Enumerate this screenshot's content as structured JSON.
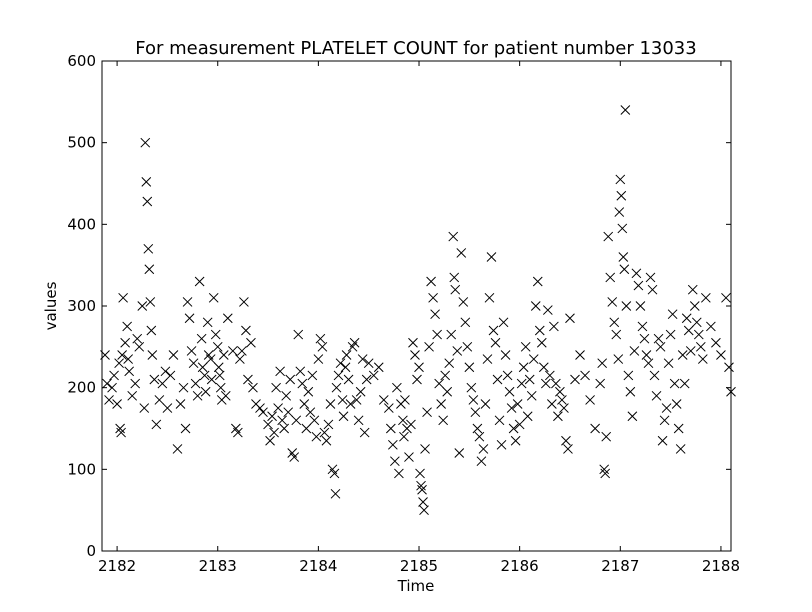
{
  "chart_data": {
    "type": "scatter",
    "title": "For measurement PLATELET COUNT for patient number 13033",
    "xlabel": "Time",
    "ylabel": "values",
    "xlim": [
      2181.85,
      2188.1
    ],
    "ylim": [
      0,
      600
    ],
    "xticks": [
      "2182",
      "2183",
      "2184",
      "2185",
      "2186",
      "2187",
      "2188"
    ],
    "yticks": [
      "0",
      "100",
      "200",
      "300",
      "400",
      "500",
      "600"
    ],
    "grid": false,
    "legend": "none",
    "marker": "x",
    "marker_color": "#000000",
    "series": [
      {
        "points": [
          [
            2181.88,
            240
          ],
          [
            2181.9,
            205
          ],
          [
            2181.92,
            185
          ],
          [
            2181.95,
            200
          ],
          [
            2181.97,
            215
          ],
          [
            2182.0,
            180
          ],
          [
            2182.02,
            230
          ],
          [
            2182.03,
            150
          ],
          [
            2182.04,
            145
          ],
          [
            2182.05,
            240
          ],
          [
            2182.06,
            310
          ],
          [
            2182.08,
            255
          ],
          [
            2182.1,
            275
          ],
          [
            2182.11,
            235
          ],
          [
            2182.12,
            220
          ],
          [
            2182.15,
            190
          ],
          [
            2182.18,
            205
          ],
          [
            2182.2,
            260
          ],
          [
            2182.22,
            250
          ],
          [
            2182.25,
            300
          ],
          [
            2182.27,
            175
          ],
          [
            2182.28,
            500
          ],
          [
            2182.29,
            452
          ],
          [
            2182.3,
            428
          ],
          [
            2182.31,
            370
          ],
          [
            2182.32,
            345
          ],
          [
            2182.33,
            305
          ],
          [
            2182.34,
            270
          ],
          [
            2182.35,
            240
          ],
          [
            2182.37,
            210
          ],
          [
            2182.39,
            155
          ],
          [
            2182.42,
            185
          ],
          [
            2182.45,
            205
          ],
          [
            2182.48,
            220
          ],
          [
            2182.5,
            175
          ],
          [
            2182.53,
            215
          ],
          [
            2182.56,
            240
          ],
          [
            2182.6,
            125
          ],
          [
            2182.63,
            180
          ],
          [
            2182.66,
            200
          ],
          [
            2182.68,
            150
          ],
          [
            2182.7,
            305
          ],
          [
            2182.72,
            285
          ],
          [
            2182.74,
            245
          ],
          [
            2182.76,
            230
          ],
          [
            2182.78,
            205
          ],
          [
            2182.8,
            190
          ],
          [
            2182.82,
            330
          ],
          [
            2182.84,
            260
          ],
          [
            2182.85,
            225
          ],
          [
            2182.87,
            215
          ],
          [
            2182.88,
            195
          ],
          [
            2182.9,
            280
          ],
          [
            2182.91,
            240
          ],
          [
            2182.93,
            235
          ],
          [
            2182.94,
            210
          ],
          [
            2182.96,
            310
          ],
          [
            2182.98,
            265
          ],
          [
            2183.0,
            250
          ],
          [
            2183.01,
            225
          ],
          [
            2183.02,
            215
          ],
          [
            2183.03,
            200
          ],
          [
            2183.04,
            185
          ],
          [
            2183.06,
            240
          ],
          [
            2183.08,
            190
          ],
          [
            2183.1,
            285
          ],
          [
            2183.15,
            245
          ],
          [
            2183.18,
            150
          ],
          [
            2183.2,
            145
          ],
          [
            2183.22,
            235
          ],
          [
            2183.24,
            245
          ],
          [
            2183.26,
            305
          ],
          [
            2183.28,
            270
          ],
          [
            2183.3,
            210
          ],
          [
            2183.33,
            255
          ],
          [
            2183.35,
            200
          ],
          [
            2183.38,
            180
          ],
          [
            2183.42,
            175
          ],
          [
            2183.45,
            170
          ],
          [
            2183.5,
            155
          ],
          [
            2183.52,
            135
          ],
          [
            2183.54,
            165
          ],
          [
            2183.56,
            145
          ],
          [
            2183.58,
            200
          ],
          [
            2183.6,
            175
          ],
          [
            2183.62,
            220
          ],
          [
            2183.64,
            160
          ],
          [
            2183.66,
            150
          ],
          [
            2183.68,
            190
          ],
          [
            2183.7,
            170
          ],
          [
            2183.72,
            210
          ],
          [
            2183.74,
            120
          ],
          [
            2183.76,
            115
          ],
          [
            2183.78,
            160
          ],
          [
            2183.8,
            265
          ],
          [
            2183.82,
            220
          ],
          [
            2183.84,
            205
          ],
          [
            2183.86,
            180
          ],
          [
            2183.88,
            150
          ],
          [
            2183.9,
            195
          ],
          [
            2183.92,
            170
          ],
          [
            2183.94,
            215
          ],
          [
            2183.96,
            160
          ],
          [
            2183.98,
            140
          ],
          [
            2184.0,
            235
          ],
          [
            2184.02,
            260
          ],
          [
            2184.04,
            250
          ],
          [
            2184.06,
            145
          ],
          [
            2184.08,
            135
          ],
          [
            2184.1,
            155
          ],
          [
            2184.12,
            180
          ],
          [
            2184.14,
            100
          ],
          [
            2184.16,
            95
          ],
          [
            2184.17,
            70
          ],
          [
            2184.18,
            200
          ],
          [
            2184.2,
            215
          ],
          [
            2184.22,
            230
          ],
          [
            2184.24,
            185
          ],
          [
            2184.25,
            165
          ],
          [
            2184.27,
            225
          ],
          [
            2184.28,
            240
          ],
          [
            2184.3,
            210
          ],
          [
            2184.32,
            180
          ],
          [
            2184.34,
            250
          ],
          [
            2184.36,
            255
          ],
          [
            2184.38,
            185
          ],
          [
            2184.4,
            160
          ],
          [
            2184.42,
            195
          ],
          [
            2184.44,
            235
          ],
          [
            2184.46,
            145
          ],
          [
            2184.48,
            210
          ],
          [
            2184.5,
            230
          ],
          [
            2184.55,
            215
          ],
          [
            2184.6,
            225
          ],
          [
            2184.65,
            185
          ],
          [
            2184.7,
            175
          ],
          [
            2184.72,
            150
          ],
          [
            2184.74,
            130
          ],
          [
            2184.76,
            110
          ],
          [
            2184.78,
            200
          ],
          [
            2184.8,
            95
          ],
          [
            2184.82,
            180
          ],
          [
            2184.84,
            160
          ],
          [
            2184.85,
            140
          ],
          [
            2184.86,
            185
          ],
          [
            2184.88,
            150
          ],
          [
            2184.9,
            115
          ],
          [
            2184.92,
            155
          ],
          [
            2184.94,
            255
          ],
          [
            2184.96,
            240
          ],
          [
            2184.98,
            210
          ],
          [
            2185.0,
            225
          ],
          [
            2185.01,
            95
          ],
          [
            2185.02,
            80
          ],
          [
            2185.03,
            75
          ],
          [
            2185.04,
            60
          ],
          [
            2185.05,
            50
          ],
          [
            2185.06,
            125
          ],
          [
            2185.08,
            170
          ],
          [
            2185.1,
            250
          ],
          [
            2185.12,
            330
          ],
          [
            2185.14,
            310
          ],
          [
            2185.16,
            290
          ],
          [
            2185.18,
            265
          ],
          [
            2185.2,
            205
          ],
          [
            2185.22,
            180
          ],
          [
            2185.24,
            160
          ],
          [
            2185.26,
            215
          ],
          [
            2185.28,
            195
          ],
          [
            2185.3,
            230
          ],
          [
            2185.32,
            265
          ],
          [
            2185.34,
            385
          ],
          [
            2185.35,
            335
          ],
          [
            2185.36,
            320
          ],
          [
            2185.38,
            245
          ],
          [
            2185.4,
            120
          ],
          [
            2185.42,
            365
          ],
          [
            2185.44,
            305
          ],
          [
            2185.46,
            280
          ],
          [
            2185.48,
            250
          ],
          [
            2185.5,
            225
          ],
          [
            2185.52,
            200
          ],
          [
            2185.54,
            185
          ],
          [
            2185.56,
            170
          ],
          [
            2185.58,
            150
          ],
          [
            2185.6,
            140
          ],
          [
            2185.62,
            110
          ],
          [
            2185.64,
            125
          ],
          [
            2185.66,
            180
          ],
          [
            2185.68,
            235
          ],
          [
            2185.7,
            310
          ],
          [
            2185.72,
            360
          ],
          [
            2185.74,
            270
          ],
          [
            2185.76,
            255
          ],
          [
            2185.78,
            210
          ],
          [
            2185.8,
            160
          ],
          [
            2185.82,
            130
          ],
          [
            2185.84,
            280
          ],
          [
            2185.86,
            240
          ],
          [
            2185.88,
            215
          ],
          [
            2185.9,
            195
          ],
          [
            2185.92,
            175
          ],
          [
            2185.94,
            150
          ],
          [
            2185.96,
            135
          ],
          [
            2185.98,
            180
          ],
          [
            2186.0,
            155
          ],
          [
            2186.02,
            205
          ],
          [
            2186.04,
            225
          ],
          [
            2186.06,
            250
          ],
          [
            2186.08,
            165
          ],
          [
            2186.1,
            210
          ],
          [
            2186.12,
            190
          ],
          [
            2186.14,
            235
          ],
          [
            2186.16,
            300
          ],
          [
            2186.18,
            330
          ],
          [
            2186.2,
            270
          ],
          [
            2186.22,
            255
          ],
          [
            2186.24,
            225
          ],
          [
            2186.26,
            205
          ],
          [
            2186.28,
            295
          ],
          [
            2186.3,
            215
          ],
          [
            2186.32,
            180
          ],
          [
            2186.34,
            275
          ],
          [
            2186.36,
            205
          ],
          [
            2186.38,
            165
          ],
          [
            2186.4,
            195
          ],
          [
            2186.42,
            185
          ],
          [
            2186.44,
            175
          ],
          [
            2186.46,
            135
          ],
          [
            2186.48,
            125
          ],
          [
            2186.5,
            285
          ],
          [
            2186.55,
            210
          ],
          [
            2186.6,
            240
          ],
          [
            2186.65,
            215
          ],
          [
            2186.7,
            185
          ],
          [
            2186.75,
            150
          ],
          [
            2186.8,
            205
          ],
          [
            2186.82,
            230
          ],
          [
            2186.84,
            100
          ],
          [
            2186.85,
            95
          ],
          [
            2186.86,
            140
          ],
          [
            2186.88,
            385
          ],
          [
            2186.9,
            335
          ],
          [
            2186.92,
            305
          ],
          [
            2186.94,
            280
          ],
          [
            2186.96,
            265
          ],
          [
            2186.98,
            235
          ],
          [
            2186.99,
            415
          ],
          [
            2187.0,
            455
          ],
          [
            2187.01,
            435
          ],
          [
            2187.02,
            395
          ],
          [
            2187.03,
            360
          ],
          [
            2187.04,
            345
          ],
          [
            2187.05,
            540
          ],
          [
            2187.06,
            300
          ],
          [
            2187.08,
            215
          ],
          [
            2187.1,
            195
          ],
          [
            2187.12,
            165
          ],
          [
            2187.14,
            245
          ],
          [
            2187.16,
            340
          ],
          [
            2187.18,
            325
          ],
          [
            2187.2,
            300
          ],
          [
            2187.22,
            275
          ],
          [
            2187.24,
            260
          ],
          [
            2187.26,
            240
          ],
          [
            2187.28,
            230
          ],
          [
            2187.3,
            335
          ],
          [
            2187.32,
            320
          ],
          [
            2187.34,
            215
          ],
          [
            2187.36,
            190
          ],
          [
            2187.38,
            260
          ],
          [
            2187.4,
            250
          ],
          [
            2187.42,
            135
          ],
          [
            2187.44,
            160
          ],
          [
            2187.46,
            175
          ],
          [
            2187.48,
            230
          ],
          [
            2187.5,
            265
          ],
          [
            2187.52,
            290
          ],
          [
            2187.54,
            205
          ],
          [
            2187.56,
            180
          ],
          [
            2187.58,
            150
          ],
          [
            2187.6,
            125
          ],
          [
            2187.62,
            240
          ],
          [
            2187.64,
            205
          ],
          [
            2187.66,
            285
          ],
          [
            2187.68,
            270
          ],
          [
            2187.7,
            245
          ],
          [
            2187.72,
            320
          ],
          [
            2187.74,
            300
          ],
          [
            2187.76,
            280
          ],
          [
            2187.78,
            265
          ],
          [
            2187.8,
            250
          ],
          [
            2187.82,
            235
          ],
          [
            2187.85,
            310
          ],
          [
            2187.9,
            275
          ],
          [
            2187.95,
            255
          ],
          [
            2188.0,
            240
          ],
          [
            2188.05,
            310
          ],
          [
            2188.08,
            225
          ],
          [
            2188.1,
            195
          ]
        ]
      }
    ]
  }
}
